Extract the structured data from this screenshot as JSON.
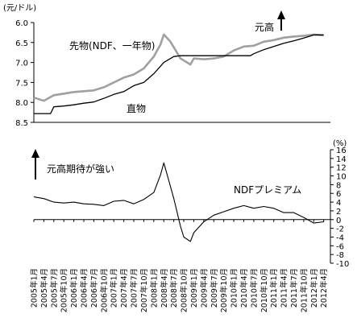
{
  "chart_data": [
    {
      "type": "line",
      "unit_label": "(元/ドル)",
      "yticks": [
        "6.0",
        "6.5",
        "7.0",
        "7.5",
        "8.0",
        "8.5"
      ],
      "ylim": [
        6.0,
        8.5
      ],
      "y_inverted": true,
      "grid": false,
      "annotations": {
        "forward": "先物(NDF、一年物)",
        "spot": "直物",
        "yuan_up": "元高"
      },
      "series": [
        {
          "name": "先物(NDF、一年物)",
          "color": "#a0a0a0",
          "x": [
            "2005-01",
            "2005-04",
            "2005-07",
            "2005-10",
            "2006-01",
            "2006-04",
            "2006-07",
            "2006-10",
            "2007-01",
            "2007-04",
            "2007-07",
            "2007-10",
            "2008-01",
            "2008-03",
            "2008-04",
            "2008-06",
            "2008-07",
            "2008-09",
            "2008-10",
            "2008-12",
            "2009-01",
            "2009-04",
            "2009-07",
            "2009-10",
            "2010-01",
            "2010-04",
            "2010-07",
            "2010-10",
            "2011-01",
            "2011-04",
            "2011-07",
            "2011-10",
            "2012-01",
            "2012-04"
          ],
          "values": [
            7.88,
            7.96,
            7.82,
            7.78,
            7.74,
            7.72,
            7.7,
            7.62,
            7.5,
            7.38,
            7.3,
            7.15,
            6.85,
            6.55,
            6.3,
            6.48,
            6.62,
            6.9,
            6.95,
            7.05,
            6.9,
            6.92,
            6.9,
            6.85,
            6.7,
            6.6,
            6.58,
            6.48,
            6.44,
            6.38,
            6.35,
            6.33,
            6.3,
            6.32
          ]
        },
        {
          "name": "直物",
          "color": "#000000",
          "x": [
            "2005-01",
            "2005-06",
            "2005-07",
            "2005-10",
            "2006-01",
            "2006-04",
            "2006-07",
            "2006-10",
            "2007-01",
            "2007-04",
            "2007-07",
            "2007-10",
            "2008-01",
            "2008-04",
            "2008-07",
            "2008-09",
            "2008-10",
            "2009-01",
            "2009-04",
            "2009-07",
            "2009-10",
            "2010-01",
            "2010-04",
            "2010-06",
            "2010-07",
            "2010-10",
            "2011-01",
            "2011-04",
            "2011-07",
            "2011-10",
            "2012-01",
            "2012-04"
          ],
          "values": [
            8.28,
            8.28,
            8.11,
            8.09,
            8.06,
            8.02,
            7.99,
            7.9,
            7.8,
            7.73,
            7.58,
            7.5,
            7.28,
            7.0,
            6.85,
            6.83,
            6.83,
            6.83,
            6.83,
            6.83,
            6.83,
            6.83,
            6.83,
            6.83,
            6.78,
            6.68,
            6.6,
            6.52,
            6.46,
            6.39,
            6.31,
            6.31
          ]
        }
      ]
    },
    {
      "type": "line",
      "unit_label": "(%)",
      "yticks": [
        "16",
        "14",
        "12",
        "10",
        "8",
        "6",
        "4",
        "2",
        "0",
        "-2",
        "-4",
        "-6",
        "-8",
        "-10"
      ],
      "ylim": [
        -10,
        16
      ],
      "grid": false,
      "annotations": {
        "expectation": "元高期待が強い",
        "premium": "NDFプレミアム"
      },
      "series": [
        {
          "name": "NDFプレミアム",
          "color": "#000000",
          "x": [
            "2005-01",
            "2005-04",
            "2005-07",
            "2005-10",
            "2006-01",
            "2006-04",
            "2006-07",
            "2006-10",
            "2007-01",
            "2007-04",
            "2007-07",
            "2007-10",
            "2008-01",
            "2008-03",
            "2008-04",
            "2008-06",
            "2008-07",
            "2008-09",
            "2008-10",
            "2008-12",
            "2009-01",
            "2009-04",
            "2009-07",
            "2009-10",
            "2010-01",
            "2010-04",
            "2010-07",
            "2010-10",
            "2011-01",
            "2011-04",
            "2011-07",
            "2011-10",
            "2012-01",
            "2012-04"
          ],
          "values": [
            5.2,
            4.8,
            4.0,
            3.8,
            4.0,
            3.6,
            3.5,
            3.2,
            4.2,
            4.4,
            3.6,
            4.6,
            6.2,
            10.2,
            13.0,
            7.6,
            4.8,
            -1.5,
            -4.0,
            -5.0,
            -3.0,
            -0.5,
            1.0,
            1.8,
            2.6,
            3.2,
            2.6,
            3.0,
            2.6,
            1.6,
            1.6,
            0.5,
            -0.8,
            -0.5
          ]
        }
      ]
    }
  ],
  "x_axis": {
    "labels": [
      "2005年1月",
      "2005年4月",
      "2005年7月",
      "2005年10月",
      "2006年1月",
      "2006年4月",
      "2006年7月",
      "2006年10月",
      "2007年1月",
      "2007年4月",
      "2007年7月",
      "2007年10月",
      "2008年1月",
      "2008年4月",
      "2008年7月",
      "2008年10月",
      "2009年1月",
      "2009年4月",
      "2009年7月",
      "2009年10月",
      "2010年1月",
      "2010年4月",
      "2010年7月",
      "2010年10月",
      "2011年1月",
      "2011年4月",
      "2011年7月",
      "2011年10月",
      "2012年1月",
      "2012年4月"
    ]
  }
}
